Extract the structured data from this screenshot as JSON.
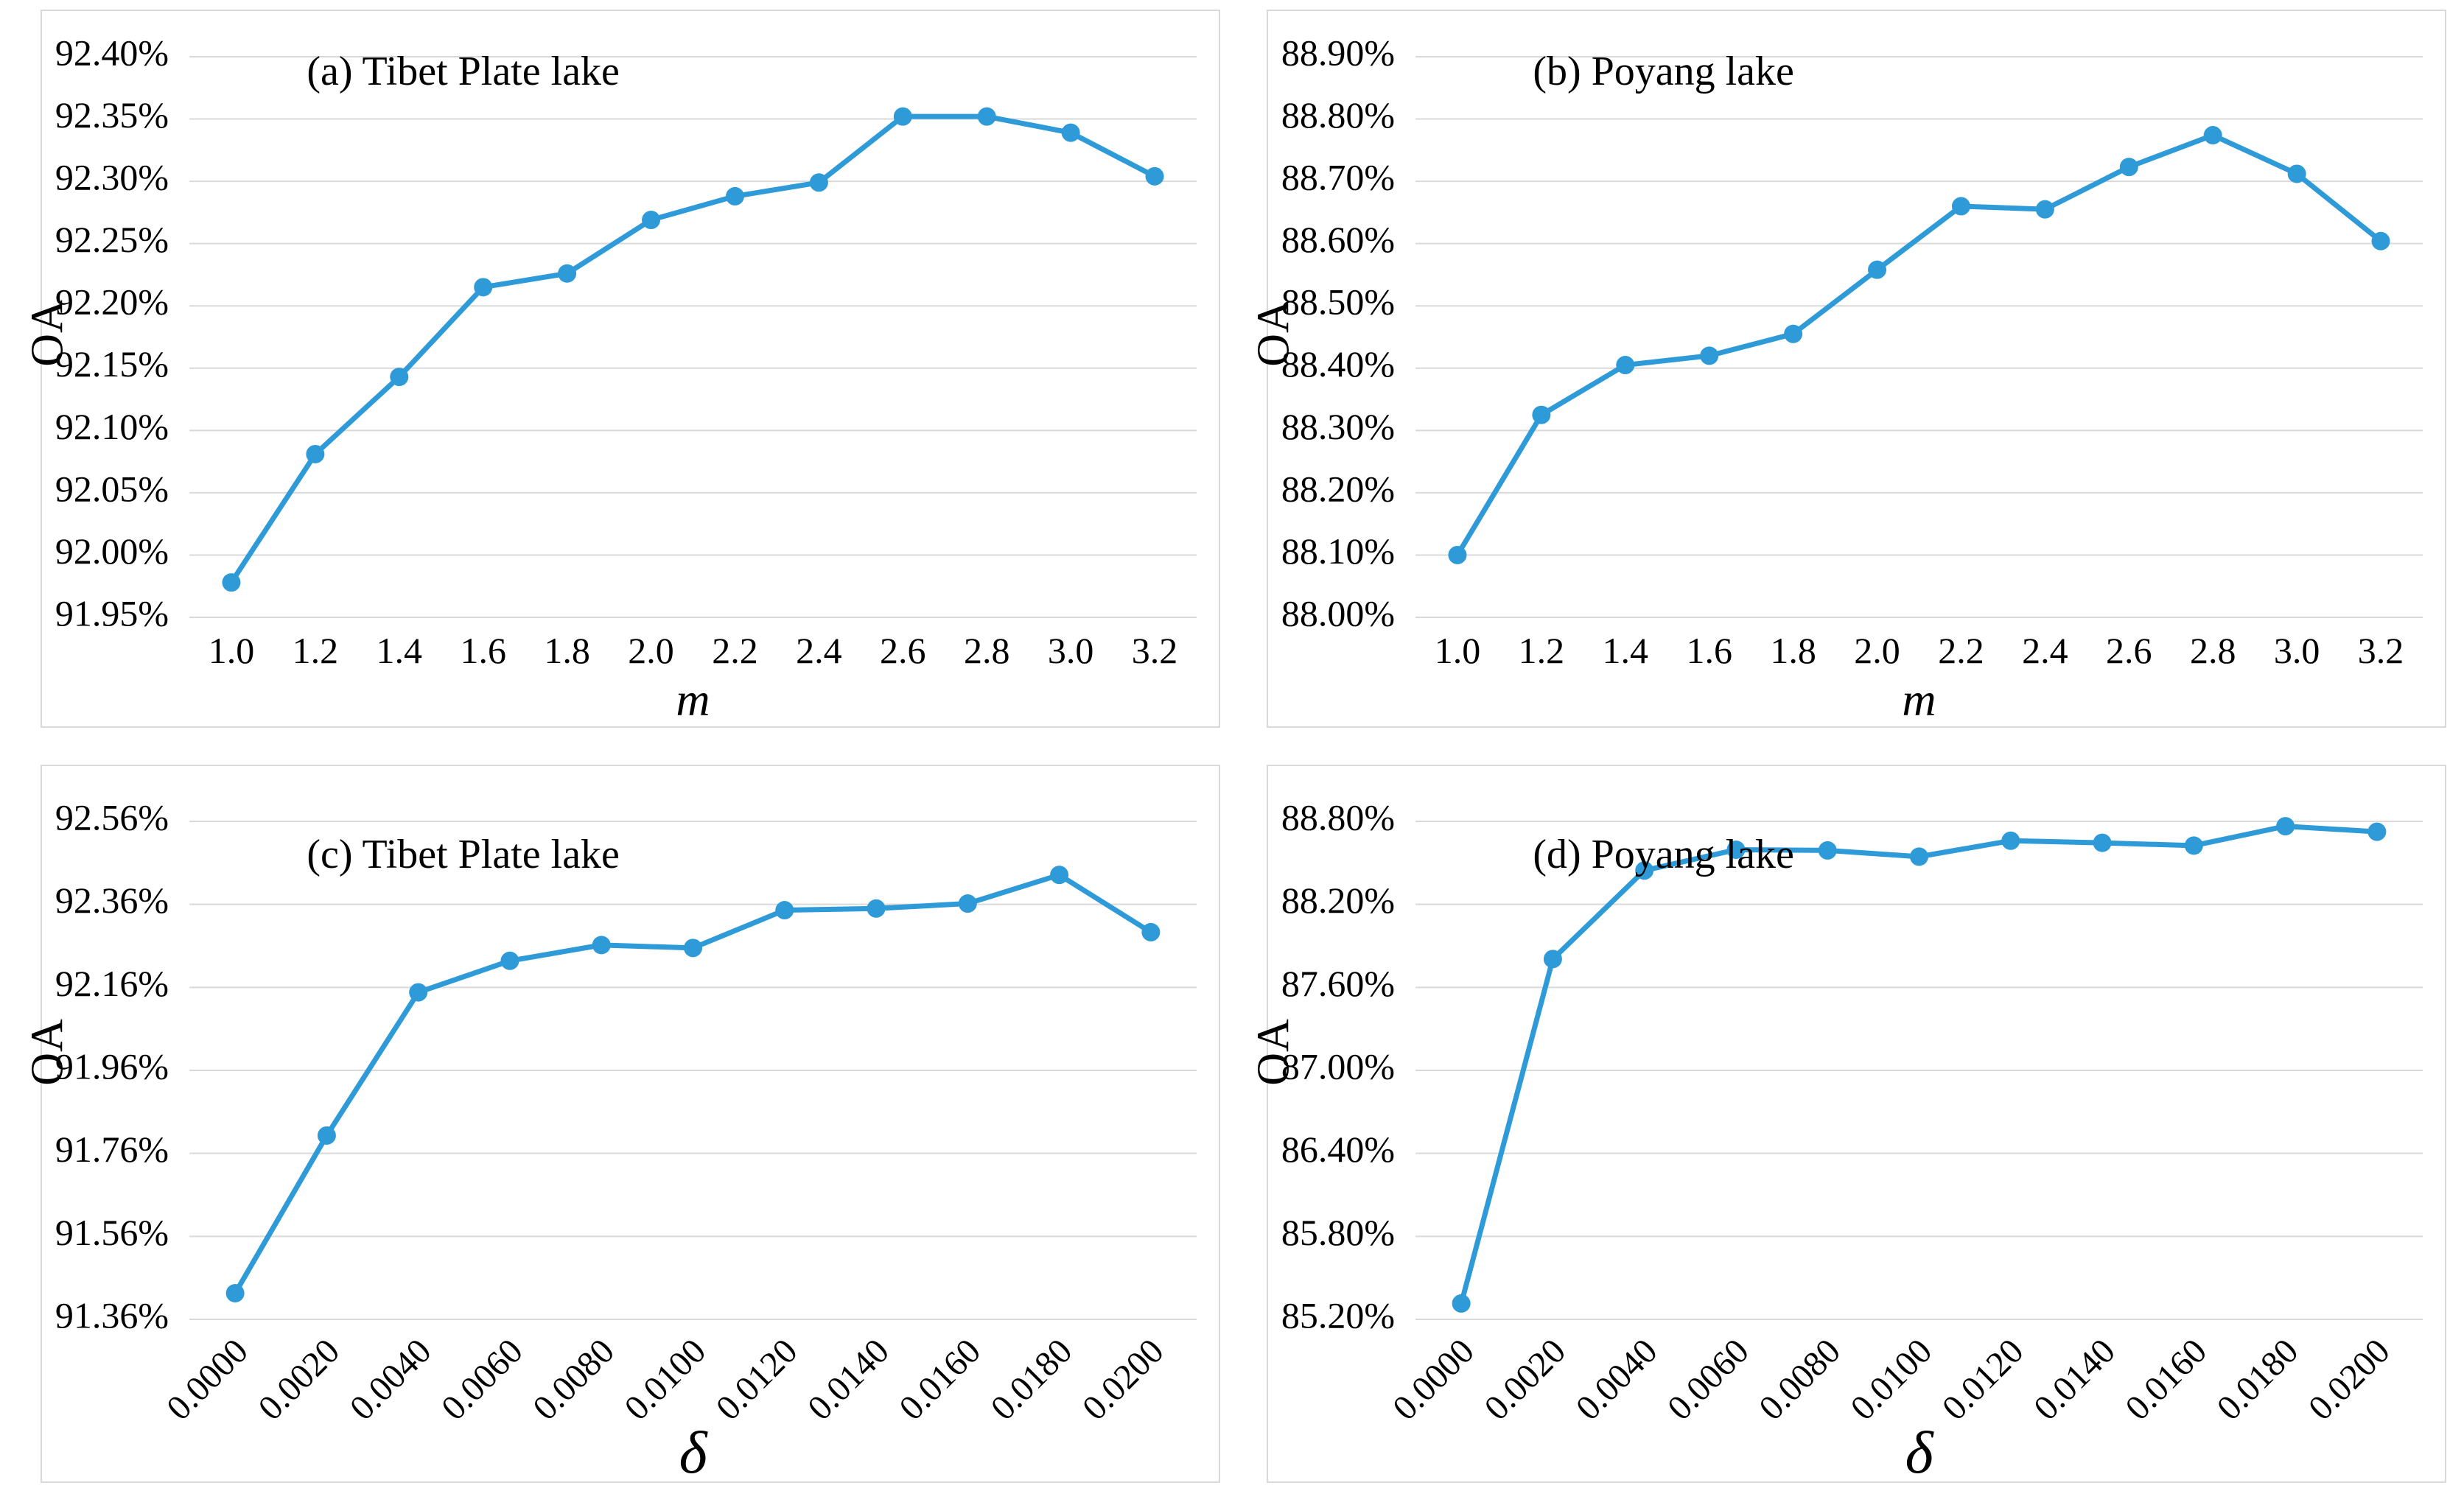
{
  "figure": {
    "description": "Sensitivity analysis line charts of OA versus parameters m and delta for two lakes"
  },
  "colors": {
    "accent": "#2E9BD8",
    "grid": "#D9D9D9",
    "panel_border": "#D9D9D9",
    "text": "#000000",
    "background": "#FFFFFF"
  },
  "chart_data": [
    {
      "type": "line",
      "title": "(a) Tibet Plate lake",
      "xlabel": "m",
      "ylabel": "OA",
      "x": [
        "1.0",
        "1.2",
        "1.4",
        "1.6",
        "1.8",
        "2.0",
        "2.2",
        "2.4",
        "2.6",
        "2.8",
        "3.0",
        "3.2"
      ],
      "values": [
        91.978,
        92.081,
        92.143,
        92.215,
        92.226,
        92.269,
        92.288,
        92.299,
        92.352,
        92.352,
        92.339,
        92.304
      ],
      "ylim": [
        91.95,
        92.4
      ],
      "yticks": [
        "91.95%",
        "92.00%",
        "92.05%",
        "92.10%",
        "92.15%",
        "92.20%",
        "92.25%",
        "92.30%",
        "92.35%",
        "92.40%"
      ],
      "x_rotation": 0,
      "line_color": "#2E9BD8",
      "grid": "horizontal",
      "legend": "none"
    },
    {
      "type": "line",
      "title": "(b) Poyang lake",
      "xlabel": "m",
      "ylabel": "OA",
      "x": [
        "1.0",
        "1.2",
        "1.4",
        "1.6",
        "1.8",
        "2.0",
        "2.2",
        "2.4",
        "2.6",
        "2.8",
        "3.0",
        "3.2"
      ],
      "values": [
        88.1,
        88.325,
        88.405,
        88.42,
        88.455,
        88.558,
        88.66,
        88.655,
        88.723,
        88.774,
        88.712,
        88.604
      ],
      "ylim": [
        88.0,
        88.9
      ],
      "yticks": [
        "88.00%",
        "88.10%",
        "88.20%",
        "88.30%",
        "88.40%",
        "88.50%",
        "88.60%",
        "88.70%",
        "88.80%",
        "88.90%"
      ],
      "x_rotation": 0,
      "line_color": "#2E9BD8",
      "grid": "horizontal",
      "legend": "none"
    },
    {
      "type": "line",
      "title": "(c) Tibet Plate lake",
      "xlabel": "δ",
      "ylabel": "OA",
      "x": [
        "0.0000",
        "0.0020",
        "0.0040",
        "0.0060",
        "0.0080",
        "0.0100",
        "0.0120",
        "0.0140",
        "0.0160",
        "0.0180",
        "0.0200"
      ],
      "values": [
        91.423,
        91.803,
        92.148,
        92.224,
        92.262,
        92.255,
        92.346,
        92.35,
        92.362,
        92.431,
        92.293
      ],
      "ylim": [
        91.36,
        92.56
      ],
      "yticks": [
        "91.36%",
        "91.56%",
        "91.76%",
        "91.96%",
        "92.16%",
        "92.36%",
        "92.56%"
      ],
      "x_rotation": 45,
      "line_color": "#2E9BD8",
      "grid": "horizontal",
      "legend": "none"
    },
    {
      "type": "line",
      "title": "(d) Poyang lake",
      "xlabel": "δ",
      "ylabel": "OA",
      "x": [
        "0.0000",
        "0.0020",
        "0.0040",
        "0.0060",
        "0.0080",
        "0.0100",
        "0.0120",
        "0.0140",
        "0.0160",
        "0.0180",
        "0.0200"
      ],
      "values": [
        85.315,
        87.805,
        88.445,
        88.595,
        88.59,
        88.545,
        88.66,
        88.645,
        88.625,
        88.765,
        88.725
      ],
      "ylim": [
        85.2,
        88.8
      ],
      "yticks": [
        "85.20%",
        "85.80%",
        "86.40%",
        "87.00%",
        "87.60%",
        "88.20%",
        "88.80%"
      ],
      "x_rotation": 45,
      "line_color": "#2E9BD8",
      "grid": "horizontal",
      "legend": "none"
    }
  ]
}
